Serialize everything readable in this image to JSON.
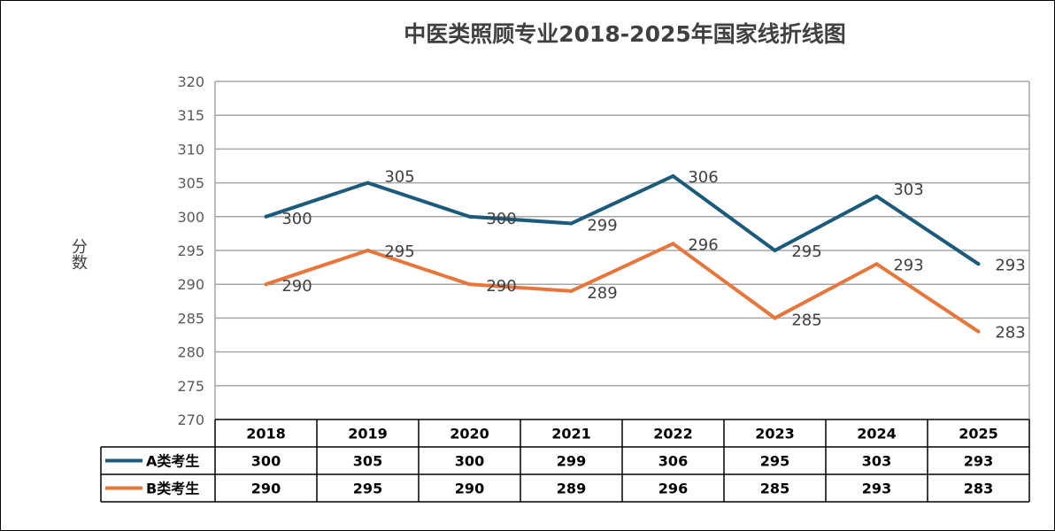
{
  "chart_data": {
    "type": "line",
    "title": "中医类照顾专业2018-2025年国家线折线图",
    "ylabel": "分数",
    "xlabel": "",
    "ylim": [
      270,
      320
    ],
    "yticks": [
      270,
      275,
      280,
      285,
      290,
      295,
      300,
      305,
      310,
      315,
      320
    ],
    "categories": [
      "2018",
      "2019",
      "2020",
      "2021",
      "2022",
      "2023",
      "2024",
      "2025"
    ],
    "grid": true,
    "legend": "data-table-left",
    "series": [
      {
        "name": "A类考生",
        "color": "#1a5a7a",
        "values": [
          300,
          305,
          300,
          299,
          306,
          295,
          303,
          293
        ]
      },
      {
        "name": "B类考生",
        "color": "#e8753a",
        "values": [
          290,
          295,
          290,
          289,
          296,
          285,
          293,
          283
        ]
      }
    ]
  }
}
